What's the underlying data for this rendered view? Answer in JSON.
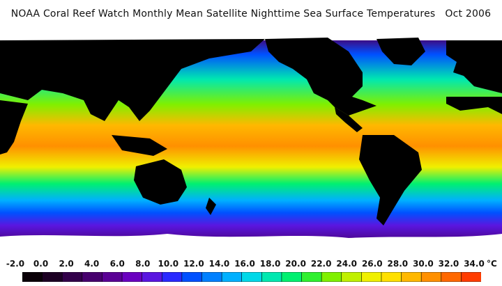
{
  "title": "NOAA Coral Reef Watch Monthly Mean Satellite Nighttime Sea Surface Temperatures",
  "date": "Oct 2006",
  "legend": {
    "unit": "°C",
    "ticks": [
      "-2.0",
      "0.0",
      "2.0",
      "4.0",
      "6.0",
      "8.0",
      "10.0",
      "12.0",
      "14.0",
      "16.0",
      "18.0",
      "20.0",
      "22.0",
      "24.0",
      "26.0",
      "28.0",
      "30.0",
      "32.0",
      "34.0"
    ],
    "colors": [
      "#0a0008",
      "#1d0024",
      "#33004a",
      "#47006e",
      "#5a0095",
      "#6a00c0",
      "#5a16e0",
      "#2a2aff",
      "#0050ff",
      "#0080ff",
      "#00b0ff",
      "#00d8e8",
      "#00e8b0",
      "#00f070",
      "#30f030",
      "#80f000",
      "#c0f000",
      "#f0f000",
      "#ffe000",
      "#ffb800",
      "#ff9000",
      "#ff6800",
      "#ff3c00"
    ]
  },
  "map_colors": {
    "land": "#000000",
    "ice": "#ffffff",
    "ocean_gradient": [
      "#ff9000",
      "#ffb800",
      "#f0f000",
      "#80f000",
      "#00f070",
      "#00e8b0",
      "#00b0ff",
      "#0050ff",
      "#5a16e0",
      "#47006e"
    ]
  }
}
